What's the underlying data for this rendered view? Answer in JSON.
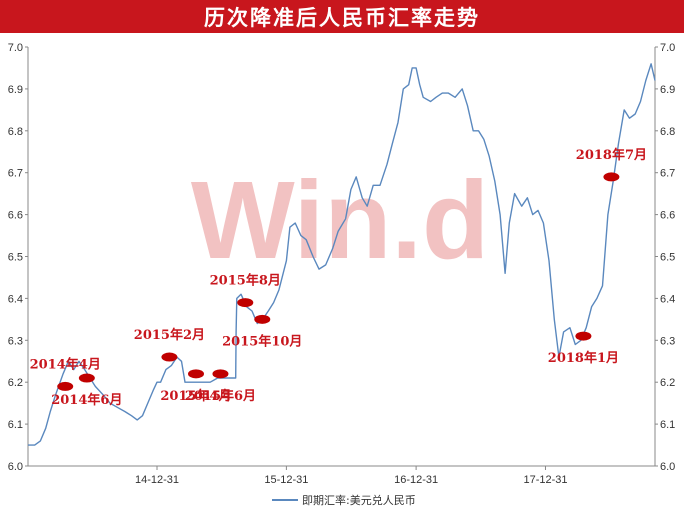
{
  "title": "历次降准后人民币汇率走势",
  "watermark": "Win.d",
  "colors": {
    "title_bg": "#c8161d",
    "line": "#5a88be",
    "marker": "#c00000",
    "annotation": "#c8161d",
    "watermark": "#e89292"
  },
  "chart_data": {
    "type": "line",
    "title": "历次降准后人民币汇率走势",
    "xlabel": "",
    "ylabel": "",
    "x_range": [
      "2014-01-01",
      "2018-11-05"
    ],
    "ylim": [
      6.0,
      7.0
    ],
    "y_ticks": [
      6.0,
      6.1,
      6.2,
      6.3,
      6.4,
      6.5,
      6.6,
      6.7,
      6.8,
      6.9,
      7.0
    ],
    "x_ticks": [
      {
        "date": "2014-12-31",
        "label": "14-12-31"
      },
      {
        "date": "2015-12-31",
        "label": "15-12-31"
      },
      {
        "date": "2016-12-31",
        "label": "16-12-31"
      },
      {
        "date": "2017-12-31",
        "label": "17-12-31"
      }
    ],
    "grid": false,
    "legend_position": "bottom-center",
    "series": [
      {
        "name": "即期汇率:美元兑人民币",
        "points": [
          [
            "2014-01-01",
            6.05
          ],
          [
            "2014-01-20",
            6.05
          ],
          [
            "2014-02-05",
            6.06
          ],
          [
            "2014-02-20",
            6.09
          ],
          [
            "2014-03-05",
            6.13
          ],
          [
            "2014-03-20",
            6.17
          ],
          [
            "2014-04-10",
            6.22
          ],
          [
            "2014-04-25",
            6.25
          ],
          [
            "2014-05-10",
            6.23
          ],
          [
            "2014-05-25",
            6.25
          ],
          [
            "2014-06-10",
            6.23
          ],
          [
            "2014-06-25",
            6.21
          ],
          [
            "2014-07-10",
            6.19
          ],
          [
            "2014-08-01",
            6.17
          ],
          [
            "2014-08-20",
            6.15
          ],
          [
            "2014-09-10",
            6.14
          ],
          [
            "2014-10-01",
            6.13
          ],
          [
            "2014-10-20",
            6.12
          ],
          [
            "2014-11-05",
            6.11
          ],
          [
            "2014-11-20",
            6.12
          ],
          [
            "2014-12-05",
            6.15
          ],
          [
            "2014-12-20",
            6.18
          ],
          [
            "2014-12-31",
            6.2
          ],
          [
            "2015-01-10",
            6.2
          ],
          [
            "2015-01-25",
            6.23
          ],
          [
            "2015-02-10",
            6.24
          ],
          [
            "2015-02-25",
            6.26
          ],
          [
            "2015-03-10",
            6.25
          ],
          [
            "2015-03-20",
            6.2
          ],
          [
            "2015-04-05",
            6.2
          ],
          [
            "2015-04-20",
            6.2
          ],
          [
            "2015-05-10",
            6.2
          ],
          [
            "2015-05-30",
            6.2
          ],
          [
            "2015-06-20",
            6.21
          ],
          [
            "2015-07-20",
            6.21
          ],
          [
            "2015-08-10",
            6.21
          ],
          [
            "2015-08-11",
            6.32
          ],
          [
            "2015-08-13",
            6.4
          ],
          [
            "2015-08-25",
            6.41
          ],
          [
            "2015-09-10",
            6.38
          ],
          [
            "2015-09-25",
            6.37
          ],
          [
            "2015-10-10",
            6.34
          ],
          [
            "2015-10-25",
            6.35
          ],
          [
            "2015-11-10",
            6.37
          ],
          [
            "2015-11-25",
            6.39
          ],
          [
            "2015-12-10",
            6.42
          ],
          [
            "2015-12-31",
            6.49
          ],
          [
            "2016-01-10",
            6.57
          ],
          [
            "2016-01-25",
            6.58
          ],
          [
            "2016-02-10",
            6.55
          ],
          [
            "2016-02-25",
            6.54
          ],
          [
            "2016-03-15",
            6.5
          ],
          [
            "2016-04-01",
            6.47
          ],
          [
            "2016-04-20",
            6.48
          ],
          [
            "2016-05-10",
            6.52
          ],
          [
            "2016-05-25",
            6.56
          ],
          [
            "2016-06-15",
            6.59
          ],
          [
            "2016-06-30",
            6.66
          ],
          [
            "2016-07-15",
            6.69
          ],
          [
            "2016-08-01",
            6.64
          ],
          [
            "2016-08-15",
            6.62
          ],
          [
            "2016-09-01",
            6.67
          ],
          [
            "2016-09-20",
            6.67
          ],
          [
            "2016-10-10",
            6.72
          ],
          [
            "2016-10-25",
            6.77
          ],
          [
            "2016-11-10",
            6.82
          ],
          [
            "2016-11-25",
            6.9
          ],
          [
            "2016-12-10",
            6.91
          ],
          [
            "2016-12-20",
            6.95
          ],
          [
            "2016-12-31",
            6.95
          ],
          [
            "2017-01-10",
            6.91
          ],
          [
            "2017-01-20",
            6.88
          ],
          [
            "2017-02-10",
            6.87
          ],
          [
            "2017-02-25",
            6.88
          ],
          [
            "2017-03-15",
            6.89
          ],
          [
            "2017-04-01",
            6.89
          ],
          [
            "2017-04-20",
            6.88
          ],
          [
            "2017-05-10",
            6.9
          ],
          [
            "2017-05-25",
            6.86
          ],
          [
            "2017-06-10",
            6.8
          ],
          [
            "2017-06-25",
            6.8
          ],
          [
            "2017-07-10",
            6.78
          ],
          [
            "2017-07-25",
            6.74
          ],
          [
            "2017-08-10",
            6.68
          ],
          [
            "2017-08-25",
            6.6
          ],
          [
            "2017-09-08",
            6.46
          ],
          [
            "2017-09-20",
            6.58
          ],
          [
            "2017-10-05",
            6.65
          ],
          [
            "2017-10-25",
            6.62
          ],
          [
            "2017-11-10",
            6.64
          ],
          [
            "2017-11-25",
            6.6
          ],
          [
            "2017-12-10",
            6.61
          ],
          [
            "2017-12-25",
            6.58
          ],
          [
            "2018-01-10",
            6.49
          ],
          [
            "2018-01-25",
            6.35
          ],
          [
            "2018-02-07",
            6.26
          ],
          [
            "2018-02-20",
            6.32
          ],
          [
            "2018-03-10",
            6.33
          ],
          [
            "2018-03-25",
            6.29
          ],
          [
            "2018-04-10",
            6.3
          ],
          [
            "2018-04-25",
            6.33
          ],
          [
            "2018-05-10",
            6.38
          ],
          [
            "2018-05-25",
            6.4
          ],
          [
            "2018-06-10",
            6.43
          ],
          [
            "2018-06-25",
            6.6
          ],
          [
            "2018-07-10",
            6.68
          ],
          [
            "2018-07-25",
            6.77
          ],
          [
            "2018-08-10",
            6.85
          ],
          [
            "2018-08-25",
            6.83
          ],
          [
            "2018-09-10",
            6.84
          ],
          [
            "2018-09-25",
            6.87
          ],
          [
            "2018-10-10",
            6.92
          ],
          [
            "2018-10-25",
            6.96
          ],
          [
            "2018-11-05",
            6.92
          ]
        ]
      }
    ],
    "annotations": [
      {
        "date": "2014-04-16",
        "value": 6.19,
        "label": "2014年4月",
        "placement": "above"
      },
      {
        "date": "2014-06-16",
        "value": 6.21,
        "label": "2014年6月",
        "placement": "below"
      },
      {
        "date": "2015-02-04",
        "value": 6.26,
        "label": "2015年2月",
        "placement": "above"
      },
      {
        "date": "2015-04-20",
        "value": 6.22,
        "label": "2015年4月",
        "placement": "below"
      },
      {
        "date": "2015-06-28",
        "value": 6.22,
        "label": "2015年6月",
        "placement": "below"
      },
      {
        "date": "2015-09-06",
        "value": 6.39,
        "label": "2015年8月",
        "placement": "above"
      },
      {
        "date": "2015-10-24",
        "value": 6.35,
        "label": "2015年10月",
        "placement": "below"
      },
      {
        "date": "2018-04-17",
        "value": 6.31,
        "label": "2018年1月",
        "placement": "below"
      },
      {
        "date": "2018-07-05",
        "value": 6.69,
        "label": "2018年7月",
        "placement": "above"
      }
    ]
  }
}
